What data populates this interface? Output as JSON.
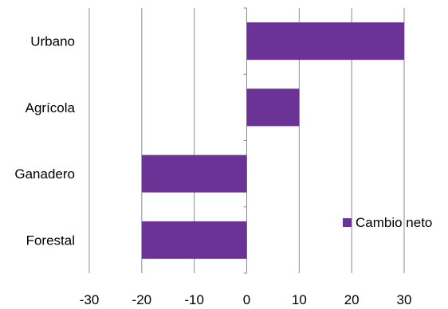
{
  "chart_data": {
    "type": "bar",
    "orientation": "horizontal",
    "categories": [
      "Urbano",
      "Agrícola",
      "Ganadero",
      "Forestal"
    ],
    "series": [
      {
        "name": "Cambio neto",
        "values": [
          30,
          10,
          -20,
          -20
        ]
      }
    ],
    "xlim": [
      -30,
      30
    ],
    "xticks": [
      "-30",
      "-20",
      "-10",
      "0",
      "10",
      "20",
      "30"
    ],
    "grid": "vertical",
    "legend": {
      "entries": [
        "Cambio neto"
      ],
      "placement": "bottom-right"
    },
    "colors": {
      "bar": "#6a3395",
      "grid": "#8c8c8c"
    }
  }
}
